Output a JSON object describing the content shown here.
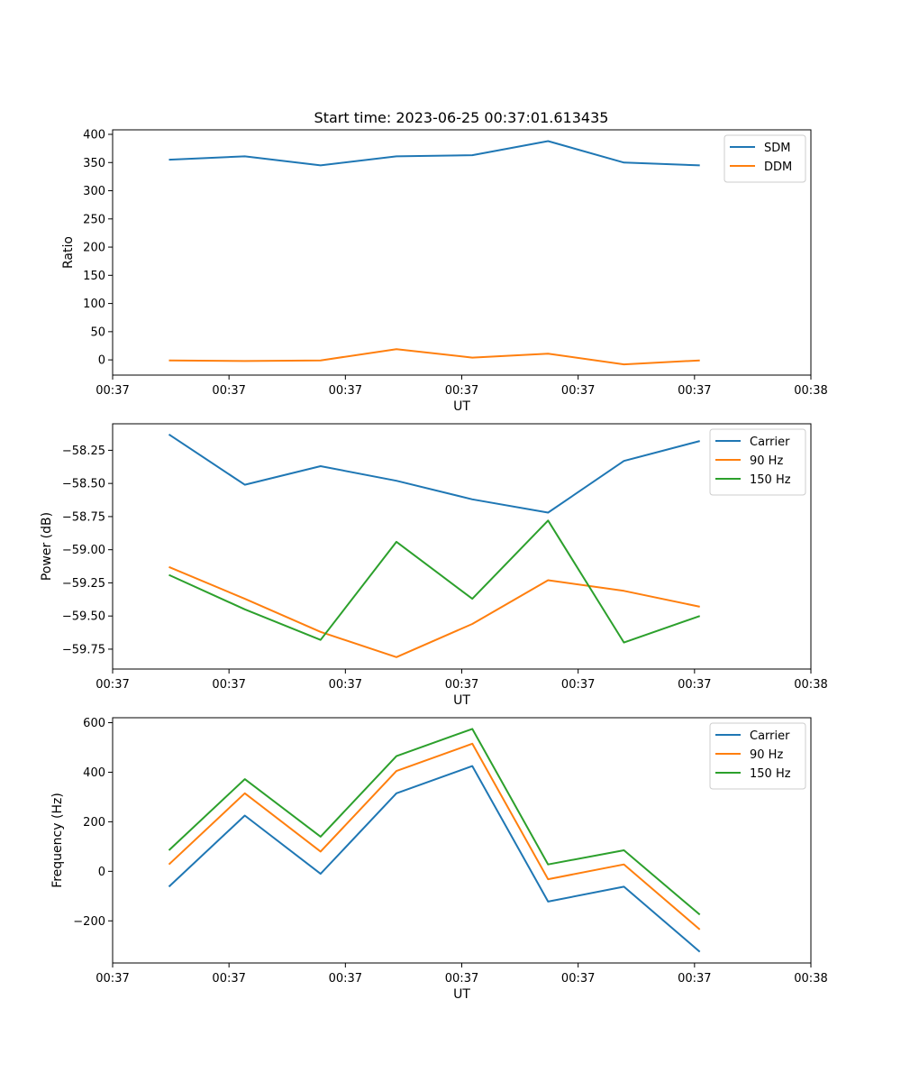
{
  "figure": {
    "title": "Start time: 2023-06-25 00:37:01.613435"
  },
  "chart_data": [
    {
      "type": "line",
      "xlabel": "UT",
      "ylabel": "Ratio",
      "xlim": [
        0,
        9.3
      ],
      "xticks": [
        0,
        1.55,
        3.1,
        4.65,
        6.2,
        7.75,
        9.3
      ],
      "xtick_labels": [
        "00:37",
        "00:37",
        "00:37",
        "00:37",
        "00:37",
        "00:37",
        "00:38"
      ],
      "ylim": [
        -27,
        408
      ],
      "yticks": [
        0,
        50,
        100,
        150,
        200,
        250,
        300,
        350,
        400
      ],
      "ytick_labels": [
        "0",
        "50",
        "100",
        "150",
        "200",
        "250",
        "300",
        "350",
        "400"
      ],
      "legend": "top-right",
      "x": [
        0.75,
        1.76,
        2.77,
        3.78,
        4.79,
        5.8,
        6.81,
        7.82
      ],
      "series": [
        {
          "name": "SDM",
          "color": "#1f77b4",
          "values": [
            355,
            361,
            345,
            361,
            363,
            388,
            350,
            345
          ]
        },
        {
          "name": "DDM",
          "color": "#ff7f0e",
          "values": [
            -1,
            -2,
            -1,
            19,
            4,
            11,
            -8,
            -1
          ]
        }
      ]
    },
    {
      "type": "line",
      "xlabel": "UT",
      "ylabel": "Power (dB)",
      "xlim": [
        0,
        9.3
      ],
      "xticks": [
        0,
        1.55,
        3.1,
        4.65,
        6.2,
        7.75,
        9.3
      ],
      "xtick_labels": [
        "00:37",
        "00:37",
        "00:37",
        "00:37",
        "00:37",
        "00:37",
        "00:38"
      ],
      "ylim": [
        -59.9,
        -58.05
      ],
      "yticks": [
        -59.75,
        -59.5,
        -59.25,
        -59.0,
        -58.75,
        -58.5,
        -58.25
      ],
      "ytick_labels": [
        "−59.75",
        "−59.50",
        "−59.25",
        "−59.00",
        "−58.75",
        "−58.50",
        "−58.25"
      ],
      "legend": "top-right",
      "x": [
        0.75,
        1.76,
        2.77,
        3.78,
        4.79,
        5.8,
        6.81,
        7.82
      ],
      "series": [
        {
          "name": "Carrier",
          "color": "#1f77b4",
          "values": [
            -58.13,
            -58.51,
            -58.37,
            -58.48,
            -58.62,
            -58.72,
            -58.33,
            -58.18
          ]
        },
        {
          "name": "90 Hz",
          "color": "#ff7f0e",
          "values": [
            -59.13,
            -59.37,
            -59.62,
            -59.81,
            -59.56,
            -59.23,
            -59.31,
            -59.43
          ]
        },
        {
          "name": "150 Hz",
          "color": "#2ca02c",
          "values": [
            -59.19,
            -59.45,
            -59.68,
            -58.94,
            -59.37,
            -58.78,
            -59.7,
            -59.5
          ]
        }
      ]
    },
    {
      "type": "line",
      "xlabel": "UT",
      "ylabel": "Frequency (Hz)",
      "xlim": [
        0,
        9.3
      ],
      "xticks": [
        0,
        1.55,
        3.1,
        4.65,
        6.2,
        7.75,
        9.3
      ],
      "xtick_labels": [
        "00:37",
        "00:37",
        "00:37",
        "00:37",
        "00:37",
        "00:37",
        "00:38"
      ],
      "ylim": [
        -370,
        620
      ],
      "yticks": [
        -200,
        0,
        200,
        400,
        600
      ],
      "ytick_labels": [
        "−200",
        "0",
        "200",
        "400",
        "600"
      ],
      "legend": "top-right",
      "x": [
        0.75,
        1.76,
        2.77,
        3.78,
        4.79,
        5.8,
        6.81,
        7.82
      ],
      "series": [
        {
          "name": "Carrier",
          "color": "#1f77b4",
          "values": [
            -62,
            225,
            -10,
            315,
            425,
            -122,
            -62,
            -325
          ]
        },
        {
          "name": "90 Hz",
          "color": "#ff7f0e",
          "values": [
            28,
            315,
            80,
            405,
            515,
            -32,
            28,
            -235
          ]
        },
        {
          "name": "150 Hz",
          "color": "#2ca02c",
          "values": [
            85,
            372,
            140,
            465,
            575,
            28,
            85,
            -175
          ]
        }
      ]
    }
  ]
}
